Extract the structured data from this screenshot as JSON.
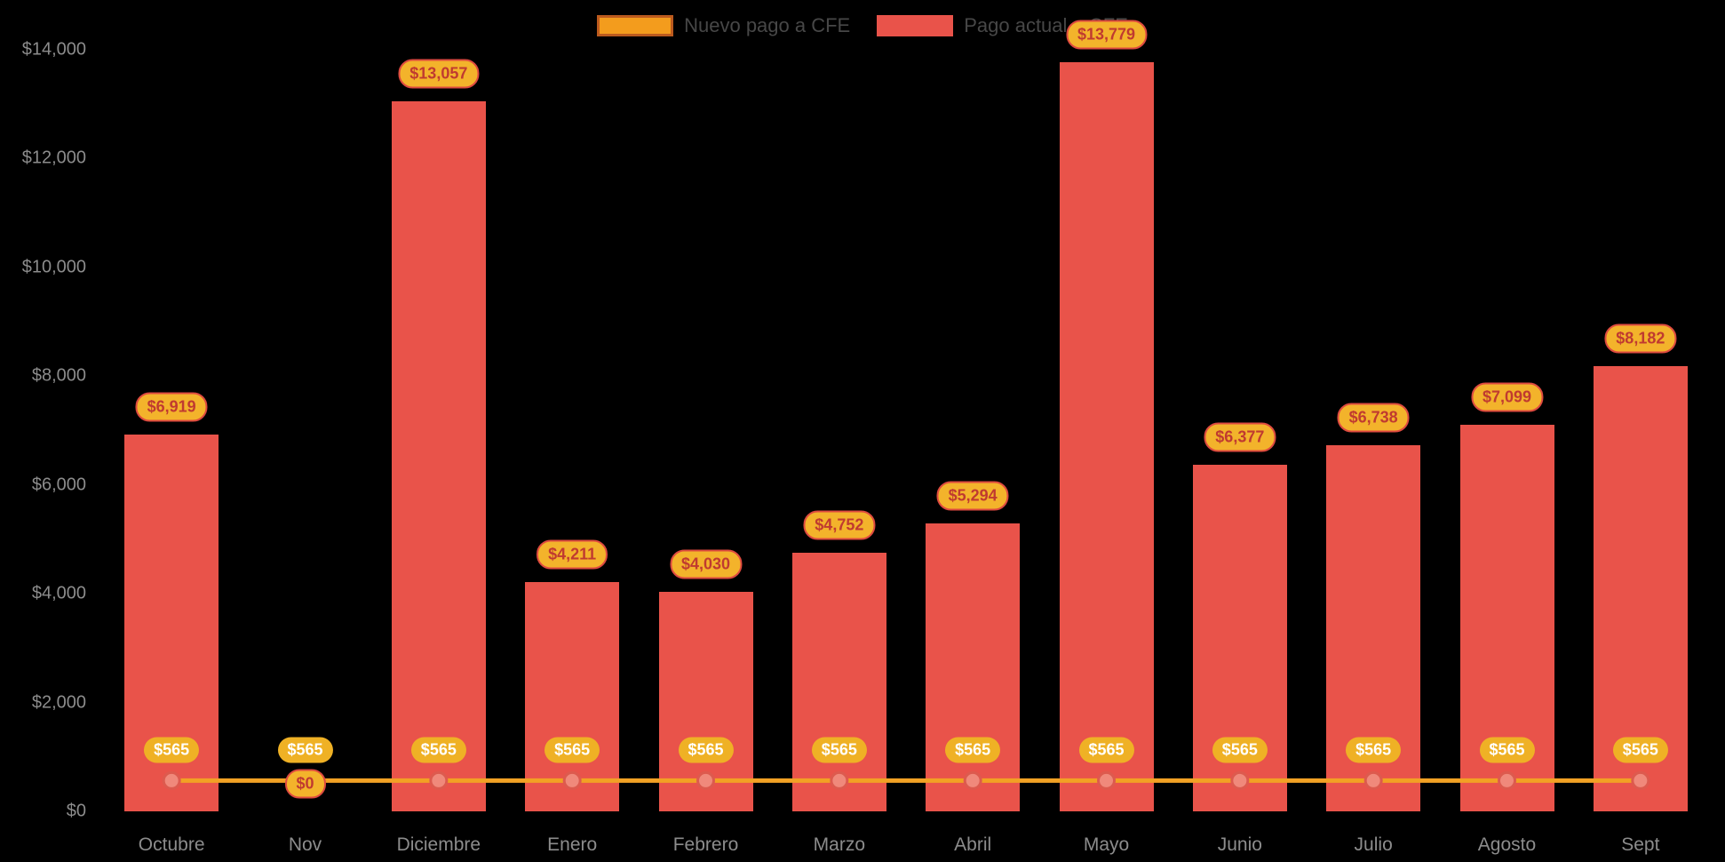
{
  "colors": {
    "background": "#000000",
    "bar": "#E9534A",
    "line": "#F2A124",
    "point_fill": "#F0897B",
    "point_stroke": "#DD5A4E",
    "bar_label_bg": "#F3B32B",
    "bar_label_border": "#DE4A3F",
    "bar_label_text": "#C03A30",
    "line_label_bg": "#EFB125",
    "line_label_text": "#FFFFFF",
    "axis_text": "#8C8C8C",
    "legend_text": "#474747"
  },
  "legend": [
    {
      "label": "Nuevo pago a CFE",
      "fill": "#F39C1D",
      "border": "#BC5A1E"
    },
    {
      "label": "Pago actual a CFE",
      "fill": "#E9534A",
      "border": "#E9534A"
    }
  ],
  "chart_data": {
    "type": "bar",
    "title": "",
    "categories": [
      "Octubre",
      "Nov",
      "Diciembre",
      "Enero",
      "Febrero",
      "Marzo",
      "Abril",
      "Mayo",
      "Junio",
      "Julio",
      "Agosto",
      "Sept"
    ],
    "series": [
      {
        "name": "Pago actual a CFE",
        "type": "bar",
        "color": "#E9534A",
        "values": [
          6919,
          0,
          13057,
          4211,
          4030,
          4752,
          5294,
          13779,
          6377,
          6738,
          7099,
          8182
        ],
        "labels": [
          "$6,919",
          "$0",
          "$13,057",
          "$4,211",
          "$4,030",
          "$4,752",
          "$5,294",
          "$13,779",
          "$6,377",
          "$6,738",
          "$7,099",
          "$8,182"
        ]
      },
      {
        "name": "Nuevo pago a CFE",
        "type": "line",
        "color": "#F2A124",
        "values": [
          565,
          565,
          565,
          565,
          565,
          565,
          565,
          565,
          565,
          565,
          565,
          565
        ],
        "labels": [
          "$565",
          "$565",
          "$565",
          "$565",
          "$565",
          "$565",
          "$565",
          "$565",
          "$565",
          "$565",
          "$565",
          "$565"
        ]
      }
    ],
    "xlabel": "",
    "ylabel": "",
    "ylim": [
      0,
      14000
    ],
    "yticks": [
      "$0",
      "$2,000",
      "$4,000",
      "$6,000",
      "$8,000",
      "$10,000",
      "$12,000",
      "$14,000"
    ],
    "ytick_values": [
      0,
      2000,
      4000,
      6000,
      8000,
      10000,
      12000,
      14000
    ],
    "grid": false,
    "legend_position": "top-center"
  }
}
